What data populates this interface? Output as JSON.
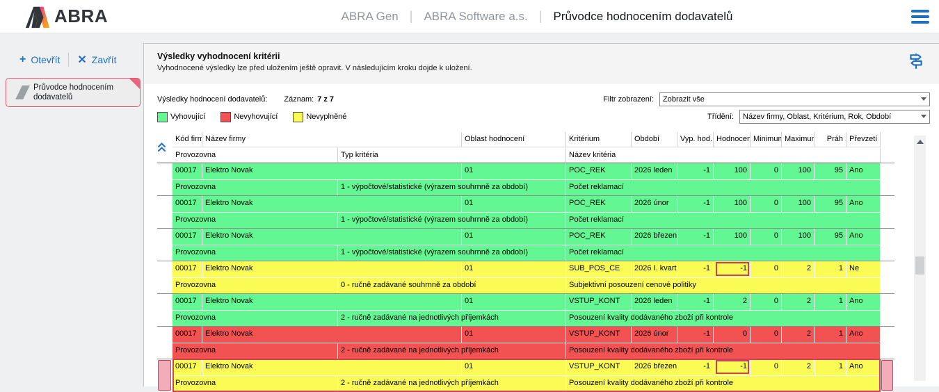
{
  "colors": {
    "accent_blue": "#1e6fc2",
    "ok_green": "#63f794",
    "fail_red": "#f25252",
    "empty_yellow": "#fbfb55",
    "selection_pink": "#f4acba",
    "selection_crimson": "#d0415a"
  },
  "header": {
    "logo_text": "ABRA",
    "app_name": "ABRA Gen",
    "company": "ABRA Software a.s.",
    "page_title": "Průvodce hodnocením dodavatelů",
    "separator": "|"
  },
  "sidebar": {
    "open_label": "Otevřít",
    "open_glyph": "+",
    "close_label": "Zavřít",
    "close_glyph": "✕",
    "tab_label": "Průvodce hodnocením dodavatelů"
  },
  "panel": {
    "title": "Výsledky vyhodnocení kritérii",
    "subtitle": "Vyhodnocené výsledky lze před uložením ještě opravit. V následujícím kroku dojde k uložení."
  },
  "toolbar": {
    "results_label": "Výsledky hodnocení dodavatelů:",
    "record_label": "Záznam:",
    "record_count": "7 z 7",
    "filter_label": "Filtr zobrazení:",
    "filter_value": "Zobrazit vše",
    "sort_label": "Třídění:",
    "sort_value": "Název firmy, Oblast, Kritérium, Rok, Období",
    "legend": [
      {
        "label": "Vyhovující",
        "color": "#63f794"
      },
      {
        "label": "Nevyhovující",
        "color": "#f25252"
      },
      {
        "label": "Nevyplněné",
        "color": "#fbfb55"
      }
    ]
  },
  "table": {
    "headers": {
      "kod": "Kód firmy",
      "nazev": "Název firmy",
      "oblast": "Oblast hodnocení",
      "kriterium": "Kritérium",
      "obdobi": "Období",
      "vyp_hod": "Vyp. hod.",
      "hodnoceni": "Hodnocení",
      "minimum": "Minimum",
      "maximum": "Maximum",
      "prah": "Práh",
      "prevzeti": "Převzetí",
      "provozovna": "Provozovna",
      "typ_kriteria": "Typ kritéria",
      "nazev_kriteria": "Název kritéria"
    },
    "records": [
      {
        "status": "green",
        "selected": false,
        "kod": "00017",
        "nazev": "Elektro Novak",
        "oblast": "01",
        "kriterium": "POC_REK",
        "obdobi": "2026 leden",
        "vyp_hod": "-1",
        "hodnoceni": "100",
        "hodnoceni_boxed": false,
        "minimum": "0",
        "maximum": "100",
        "prah": "95",
        "prevzeti": "Ano",
        "provozovna": "Provozovna",
        "typ_kriteria": "1 - výpočtové/statistické (výrazem souhrnně za období)",
        "nazev_kriteria": "Počet reklamací"
      },
      {
        "status": "green",
        "selected": false,
        "kod": "00017",
        "nazev": "Elektro Novak",
        "oblast": "01",
        "kriterium": "POC_REK",
        "obdobi": "2026 únor",
        "vyp_hod": "-1",
        "hodnoceni": "100",
        "hodnoceni_boxed": false,
        "minimum": "0",
        "maximum": "100",
        "prah": "95",
        "prevzeti": "Ano",
        "provozovna": "Provozovna",
        "typ_kriteria": "1 - výpočtové/statistické (výrazem souhrnně za období)",
        "nazev_kriteria": "Počet reklamací"
      },
      {
        "status": "green",
        "selected": false,
        "kod": "00017",
        "nazev": "Elektro Novak",
        "oblast": "01",
        "kriterium": "POC_REK",
        "obdobi": "2026 březen",
        "vyp_hod": "-1",
        "hodnoceni": "100",
        "hodnoceni_boxed": false,
        "minimum": "0",
        "maximum": "100",
        "prah": "95",
        "prevzeti": "Ano",
        "provozovna": "Provozovna",
        "typ_kriteria": "1 - výpočtové/statistické (výrazem souhrnně za období)",
        "nazev_kriteria": "Počet reklamací"
      },
      {
        "status": "yellow",
        "selected": false,
        "kod": "00017",
        "nazev": "Elektro Novak",
        "oblast": "01",
        "kriterium": "SUB_POS_CE",
        "obdobi": "2026 I. kvart",
        "vyp_hod": "-1",
        "hodnoceni": "-1",
        "hodnoceni_boxed": true,
        "minimum": "0",
        "maximum": "2",
        "prah": "1",
        "prevzeti": "Ne",
        "provozovna": "Provozovna",
        "typ_kriteria": "0 - ručně zadávané souhrnně za období",
        "nazev_kriteria": "Subjektivní posouzení cenové politiky"
      },
      {
        "status": "green",
        "selected": false,
        "kod": "00017",
        "nazev": "Elektro Novak",
        "oblast": "01",
        "kriterium": "VSTUP_KONT",
        "obdobi": "2026 leden",
        "vyp_hod": "-1",
        "hodnoceni": "2",
        "hodnoceni_boxed": false,
        "minimum": "0",
        "maximum": "2",
        "prah": "1",
        "prevzeti": "Ano",
        "provozovna": "Provozovna",
        "typ_kriteria": "2 - ručně zadávané na jednotlivých příjemkách",
        "nazev_kriteria": "Posouzení kvality dodávaného zboží při kontrole"
      },
      {
        "status": "red",
        "selected": false,
        "kod": "00017",
        "nazev": "Elektro Novak",
        "oblast": "01",
        "kriterium": "VSTUP_KONT",
        "obdobi": "2026 únor",
        "vyp_hod": "-1",
        "hodnoceni": "0",
        "hodnoceni_boxed": false,
        "minimum": "0",
        "maximum": "2",
        "prah": "1",
        "prevzeti": "Ano",
        "provozovna": "Provozovna",
        "typ_kriteria": "2 - ručně zadávané na jednotlivých příjemkách",
        "nazev_kriteria": "Posouzení kvality dodávaného zboží při kontrole"
      },
      {
        "status": "yellow",
        "selected": true,
        "kod": "00017",
        "nazev": "Elektro Novak",
        "oblast": "01",
        "kriterium": "VSTUP_KONT",
        "obdobi": "2026 březen",
        "vyp_hod": "-1",
        "hodnoceni": "-1",
        "hodnoceni_boxed": true,
        "minimum": "0",
        "maximum": "2",
        "prah": "1",
        "prevzeti": "Ano",
        "provozovna": "Provozovna",
        "typ_kriteria": "2 - ručně zadávané na jednotlivých příjemkách",
        "nazev_kriteria": "Posouzení kvality dodávaného zboží při kontrole"
      }
    ]
  }
}
